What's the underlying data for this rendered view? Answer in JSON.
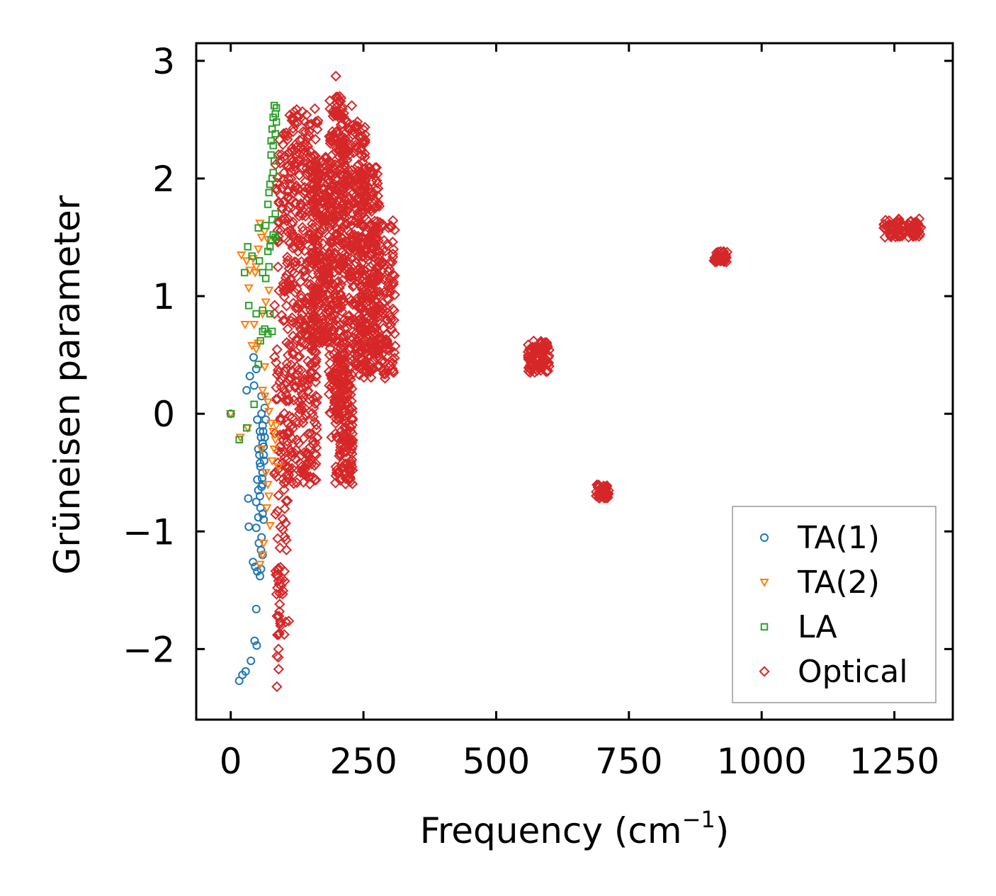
{
  "chart_data": {
    "type": "scatter",
    "title": "",
    "xlabel": "Frequency (cm",
    "xlabel_superscript": "−1",
    "xlabel_suffix": ")",
    "ylabel": "Grüneisen parameter",
    "xlim": [
      -65,
      1360
    ],
    "ylim": [
      -2.6,
      3.15
    ],
    "xticks": [
      0,
      250,
      500,
      750,
      1000,
      1250
    ],
    "xtick_labels": [
      "0",
      "250",
      "500",
      "750",
      "1000",
      "1250"
    ],
    "yticks": [
      -2,
      -1,
      0,
      1,
      2,
      3
    ],
    "ytick_labels": [
      "−2",
      "−1",
      "0",
      "1",
      "2",
      "3"
    ],
    "grid": false,
    "legend_position": "lower-right",
    "series": [
      {
        "name": "TA(1)",
        "marker": "circle",
        "color": "#1f77b4",
        "points": [
          [
            0,
            0.0
          ],
          [
            16,
            -2.27
          ],
          [
            22,
            -2.22
          ],
          [
            28,
            -2.19
          ],
          [
            38,
            -2.1
          ],
          [
            45,
            -1.93
          ],
          [
            49,
            -1.97
          ],
          [
            48,
            -1.66
          ],
          [
            42,
            -1.26
          ],
          [
            46,
            -1.3
          ],
          [
            50,
            -1.34
          ],
          [
            55,
            -1.38
          ],
          [
            57,
            -1.32
          ],
          [
            60,
            -1.2
          ],
          [
            34,
            -0.96
          ],
          [
            48,
            -0.97
          ],
          [
            58,
            -1.05
          ],
          [
            52,
            -0.88
          ],
          [
            62,
            -0.9
          ],
          [
            33,
            -0.72
          ],
          [
            48,
            -0.75
          ],
          [
            55,
            -0.7
          ],
          [
            58,
            -0.62
          ],
          [
            50,
            -0.56
          ],
          [
            60,
            -0.5
          ],
          [
            55,
            -0.42
          ],
          [
            62,
            -0.35
          ],
          [
            52,
            -0.3
          ],
          [
            60,
            -0.25
          ],
          [
            64,
            -0.2
          ],
          [
            55,
            -0.15
          ],
          [
            60,
            -0.1
          ],
          [
            66,
            -0.05
          ],
          [
            58,
            0.0
          ],
          [
            50,
            -0.05
          ],
          [
            64,
            0.05
          ],
          [
            30,
            0.2
          ],
          [
            36,
            0.32
          ],
          [
            44,
            0.24
          ],
          [
            48,
            0.38
          ],
          [
            43,
            0.48
          ],
          [
            58,
            0.15
          ],
          [
            62,
            -0.28
          ],
          [
            56,
            -0.45
          ],
          [
            60,
            -0.6
          ],
          [
            63,
            -0.4
          ],
          [
            57,
            -0.2
          ],
          [
            61,
            -0.15
          ],
          [
            54,
            -0.35
          ],
          [
            59,
            -0.55
          ],
          [
            52,
            -0.65
          ],
          [
            56,
            -0.8
          ],
          [
            60,
            -0.85
          ],
          [
            53,
            -1.1
          ],
          [
            57,
            -1.16
          ]
        ]
      },
      {
        "name": "TA(2)",
        "marker": "triangle-down",
        "color": "#ff7f0e",
        "points": [
          [
            0,
            0.0
          ],
          [
            18,
            -0.2
          ],
          [
            32,
            -0.12
          ],
          [
            20,
            1.35
          ],
          [
            30,
            1.3
          ],
          [
            36,
            1.22
          ],
          [
            42,
            1.32
          ],
          [
            48,
            1.25
          ],
          [
            52,
            1.4
          ],
          [
            55,
            1.62
          ],
          [
            58,
            1.5
          ],
          [
            64,
            1.55
          ],
          [
            70,
            1.48
          ],
          [
            34,
            1.07
          ],
          [
            46,
            1.2
          ],
          [
            27,
            0.76
          ],
          [
            44,
            0.76
          ],
          [
            40,
            0.58
          ],
          [
            48,
            0.55
          ],
          [
            52,
            0.6
          ],
          [
            60,
            0.2
          ],
          [
            64,
            0.15
          ],
          [
            70,
            0.1
          ],
          [
            72,
            0.02
          ],
          [
            76,
            -0.08
          ],
          [
            80,
            -0.15
          ],
          [
            84,
            -0.22
          ],
          [
            86,
            -0.1
          ],
          [
            58,
            -0.3
          ],
          [
            66,
            -0.5
          ],
          [
            70,
            -0.6
          ],
          [
            72,
            -0.7
          ],
          [
            68,
            -0.8
          ],
          [
            62,
            -1.1
          ],
          [
            60,
            -1.2
          ],
          [
            55,
            -1.28
          ],
          [
            74,
            -0.95
          ],
          [
            78,
            -0.4
          ],
          [
            82,
            -0.3
          ],
          [
            90,
            -0.45
          ],
          [
            64,
            0.4
          ],
          [
            60,
            0.85
          ],
          [
            66,
            0.95
          ],
          [
            72,
            1.05
          ]
        ]
      },
      {
        "name": "LA",
        "marker": "square",
        "color": "#2ca02c",
        "points": [
          [
            0,
            0.0
          ],
          [
            16,
            -0.22
          ],
          [
            30,
            -0.12
          ],
          [
            44,
            0.08
          ],
          [
            52,
            0.42
          ],
          [
            56,
            0.62
          ],
          [
            60,
            0.7
          ],
          [
            64,
            0.72
          ],
          [
            70,
            0.68
          ],
          [
            78,
            0.7
          ],
          [
            34,
            0.92
          ],
          [
            48,
            0.85
          ],
          [
            60,
            0.88
          ],
          [
            74,
            0.85
          ],
          [
            26,
            1.2
          ],
          [
            32,
            1.42
          ],
          [
            40,
            1.34
          ],
          [
            54,
            1.3
          ],
          [
            60,
            1.2
          ],
          [
            66,
            1.15
          ],
          [
            72,
            1.25
          ],
          [
            76,
            1.48
          ],
          [
            80,
            1.52
          ],
          [
            84,
            1.5
          ],
          [
            52,
            1.58
          ],
          [
            66,
            1.6
          ],
          [
            70,
            1.78
          ],
          [
            72,
            1.88
          ],
          [
            74,
            1.95
          ],
          [
            78,
            2.0
          ],
          [
            80,
            2.05
          ],
          [
            82,
            2.15
          ],
          [
            76,
            2.2
          ],
          [
            80,
            2.28
          ],
          [
            84,
            2.38
          ],
          [
            86,
            2.48
          ],
          [
            84,
            2.55
          ],
          [
            86,
            2.6
          ],
          [
            82,
            2.62
          ],
          [
            80,
            2.52
          ],
          [
            78,
            2.42
          ],
          [
            76,
            2.32
          ],
          [
            84,
            1.7
          ],
          [
            78,
            1.65
          ],
          [
            74,
            1.42
          ],
          [
            70,
            1.38
          ]
        ]
      },
      {
        "name": "Optical",
        "marker": "diamond",
        "color": "#d62728",
        "clusters": [
          {
            "x": [
              82,
              110
            ],
            "y": [
              -1.9,
              2.4
            ],
            "n": 140
          },
          {
            "x": [
              88,
              95
            ],
            "y": [
              -2.32,
              -1.05
            ],
            "n": 14
          },
          {
            "x": [
              105,
              165
            ],
            "y": [
              -0.6,
              2.6
            ],
            "n": 420
          },
          {
            "x": [
              115,
              125
            ],
            "y": [
              2.2,
              2.68
            ],
            "n": 10
          },
          {
            "x": [
              150,
              185
            ],
            "y": [
              0.6,
              2.2
            ],
            "n": 220
          },
          {
            "x": [
              185,
              215
            ],
            "y": [
              0.0,
              2.7
            ],
            "n": 300
          },
          {
            "x": [
              195,
              230
            ],
            "y": [
              -0.6,
              0.5
            ],
            "n": 160
          },
          {
            "x": [
              210,
              255
            ],
            "y": [
              0.4,
              2.5
            ],
            "n": 260
          },
          {
            "x": [
              240,
              280
            ],
            "y": [
              0.3,
              2.1
            ],
            "n": 220
          },
          {
            "x": [
              260,
              310
            ],
            "y": [
              0.3,
              1.65
            ],
            "n": 180
          },
          {
            "x": [
              560,
              600
            ],
            "y": [
              0.35,
              0.62
            ],
            "n": 90
          },
          {
            "x": [
              688,
              712
            ],
            "y": [
              -0.72,
              -0.6
            ],
            "n": 40
          },
          {
            "x": [
              910,
              935
            ],
            "y": [
              1.28,
              1.38
            ],
            "n": 40
          },
          {
            "x": [
              1230,
              1300
            ],
            "y": [
              1.5,
              1.66
            ],
            "n": 80
          }
        ],
        "points": [
          [
            198,
            2.87
          ],
          [
            204,
            2.66
          ],
          [
            228,
            2.62
          ],
          [
            225,
            -0.58
          ],
          [
            190,
            -0.2
          ],
          [
            87,
            -2.32
          ],
          [
            87,
            -2.06
          ],
          [
            90,
            -2.0
          ],
          [
            88,
            -1.88
          ],
          [
            88,
            -1.48
          ],
          [
            90,
            -1.42
          ]
        ]
      }
    ]
  }
}
